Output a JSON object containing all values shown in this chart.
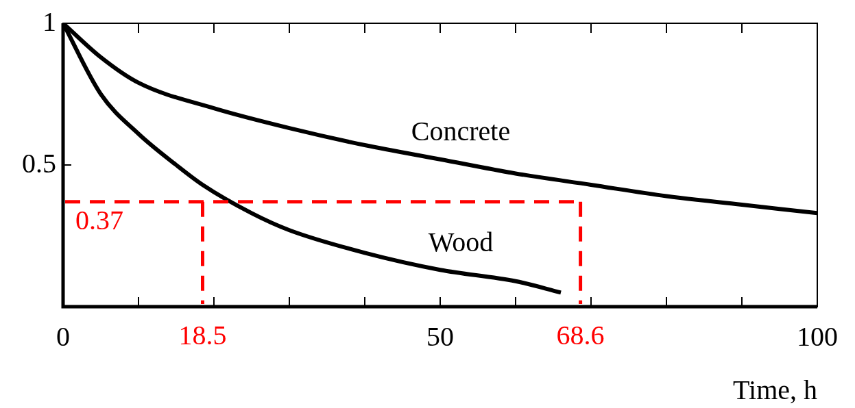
{
  "chart_data": {
    "type": "line",
    "xlabel": "Time, h",
    "xlim": [
      0,
      100
    ],
    "xticks": [
      0,
      {
        "value": 10,
        "label": null
      },
      {
        "value": 20,
        "label": null
      },
      {
        "value": 30,
        "label": null
      },
      {
        "value": 40,
        "label": null
      },
      50,
      {
        "value": 60,
        "label": null
      },
      {
        "value": 70,
        "label": null
      },
      {
        "value": 80,
        "label": null
      },
      {
        "value": 90,
        "label": null
      },
      100
    ],
    "ylim": [
      0,
      1
    ],
    "yticks": [
      0.5,
      1
    ],
    "grid": false,
    "legend": false,
    "marker": "none",
    "line_style": "solid",
    "series": [
      {
        "name": "Concrete",
        "color": "#000000",
        "x": [
          0,
          5,
          10,
          20,
          30,
          40,
          50,
          60,
          70,
          80,
          90,
          100
        ],
        "values": [
          1,
          0.88,
          0.79,
          0.7,
          0.63,
          0.57,
          0.52,
          0.47,
          0.43,
          0.39,
          0.36,
          0.33
        ]
      },
      {
        "name": "Wood",
        "color": "#000000",
        "x": [
          0,
          5,
          10,
          15,
          18.5,
          25,
          30,
          40,
          50,
          60,
          66
        ],
        "values": [
          1,
          0.75,
          0.61,
          0.5,
          0.43,
          0.33,
          0.27,
          0.19,
          0.13,
          0.09,
          0.05
        ]
      }
    ],
    "ref_lines": [
      {
        "axis": "y",
        "value": 0.37,
        "label": "0.37",
        "color": "#ff0000",
        "line_style": "dashed"
      },
      {
        "axis": "x",
        "value": 18.5,
        "label": "18.5",
        "color": "#ff0000",
        "line_style": "dashed"
      },
      {
        "axis": "x",
        "value": 68.6,
        "label": "68.6",
        "color": "#ff0000",
        "line_style": "dashed"
      }
    ]
  }
}
